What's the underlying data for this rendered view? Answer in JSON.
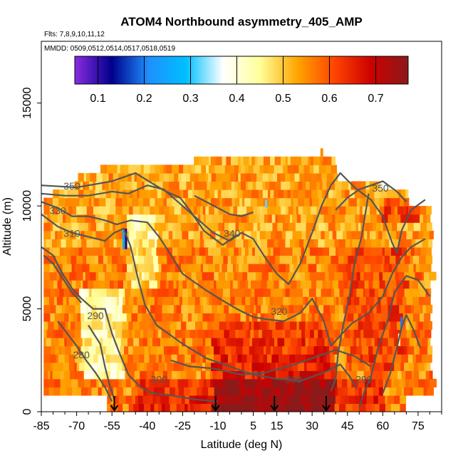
{
  "chart_data": {
    "type": "heatmap",
    "title": "ATOM4 Northbound asymmetry_405_AMP",
    "flights_label": "Flts: 7,8,9,10,11,12",
    "dates_label": "MMDD: 0509,0512,0514,0517,0518,0519",
    "xlabel": "Latitude (deg N)",
    "ylabel": "Altitude (m)",
    "xlim": [
      -85,
      85
    ],
    "ylim": [
      0,
      18000
    ],
    "x_major_ticks": [
      "-85",
      "-70",
      "-55",
      "-40",
      "-25",
      "-10",
      "5",
      "15",
      "30",
      "45",
      "60",
      "75"
    ],
    "x_major_values": [
      -85,
      -70,
      -55,
      -40,
      -25,
      -10,
      5,
      15,
      30,
      45,
      60,
      75
    ],
    "y_ticks": [
      "0",
      "5000",
      "10000",
      "15000"
    ],
    "y_values": [
      0,
      5000,
      10000,
      15000
    ],
    "colorbar": {
      "min": 0.05,
      "max": 0.77,
      "tick_labels": [
        "0.1",
        "0.2",
        "0.3",
        "0.4",
        "0.5",
        "0.6",
        "0.7"
      ],
      "tick_values": [
        0.1,
        0.2,
        0.3,
        0.4,
        0.5,
        0.6,
        0.7
      ],
      "colors": [
        "#8a2be2",
        "#00008b",
        "#1e90ff",
        "#00bfff",
        "#ffffff",
        "#ffff99",
        "#ffa500",
        "#ff4500",
        "#cc0000",
        "#8b1a1a"
      ]
    },
    "contour_labels": [
      {
        "text": "350",
        "lat": -72,
        "alt": 10800
      },
      {
        "text": "330",
        "lat": -78,
        "alt": 9600
      },
      {
        "text": "310",
        "lat": -72,
        "alt": 8500
      },
      {
        "text": "340",
        "lat": -4,
        "alt": 8500
      },
      {
        "text": "320",
        "lat": 16,
        "alt": 4700
      },
      {
        "text": "290",
        "lat": -62,
        "alt": 4500
      },
      {
        "text": "280",
        "lat": -68,
        "alt": 2600
      },
      {
        "text": "300",
        "lat": -35,
        "alt": 1400
      },
      {
        "text": "300",
        "lat": 22,
        "alt": 1400
      },
      {
        "text": "290",
        "lat": 52,
        "alt": 1400
      },
      {
        "text": "350",
        "lat": 59,
        "alt": 10700
      }
    ],
    "flight_arrow_lats": [
      -54,
      -11,
      14,
      36
    ]
  }
}
